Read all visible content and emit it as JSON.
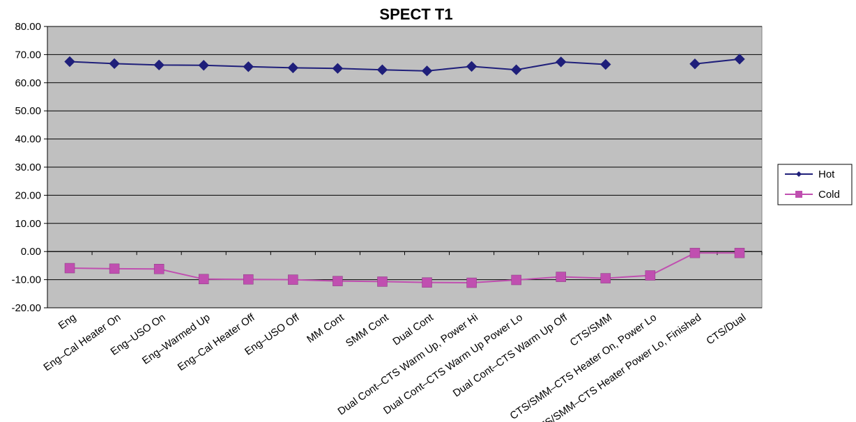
{
  "chart_data": {
    "type": "line",
    "title": "SPECT T1",
    "xlabel": "",
    "ylabel": "",
    "ylim": [
      -20,
      80
    ],
    "y_ticks": [
      "80.00",
      "70.00",
      "60.00",
      "50.00",
      "40.00",
      "30.00",
      "20.00",
      "10.00",
      "0.00",
      "-10.00",
      "-20.00"
    ],
    "y_tick_values": [
      80,
      70,
      60,
      50,
      40,
      30,
      20,
      10,
      0,
      -10,
      -20
    ],
    "grid": true,
    "legend_position": "right",
    "categories": [
      "Eng",
      "Eng–Cal Heater On",
      "Eng–USO On",
      "Eng–Warmed Up",
      "Eng–Cal Heater Off",
      "Eng–USO Off",
      "MM Cont",
      "SMM Cont",
      "Dual Cont",
      "Dual Cont–CTS Warm Up, Power Hi",
      "Dual Cont–CTS Warm Up Power Lo",
      "Dual Cont–CTS Warm Up Off",
      "CTS/SMM",
      "CTS/SMM–CTS Heater On, Power Lo",
      "CTS/SMM–CTS Heater Power Lo, Finished",
      "CTS/Dual"
    ],
    "series": [
      {
        "name": "Hot",
        "color": "#1f1f7a",
        "marker": "diamond",
        "values": [
          67.5,
          66.8,
          66.3,
          66.2,
          65.7,
          65.3,
          65.1,
          64.6,
          64.2,
          65.8,
          64.6,
          67.4,
          66.5,
          null,
          66.7,
          68.4
        ]
      },
      {
        "name": "Cold",
        "color": "#c04fb0",
        "marker": "square",
        "values": [
          -5.9,
          -6.1,
          -6.2,
          -9.8,
          -9.9,
          -10.0,
          -10.5,
          -10.7,
          -11.0,
          -11.1,
          -10.1,
          -9.0,
          -9.5,
          -8.5,
          -0.5,
          -0.5
        ]
      }
    ]
  }
}
